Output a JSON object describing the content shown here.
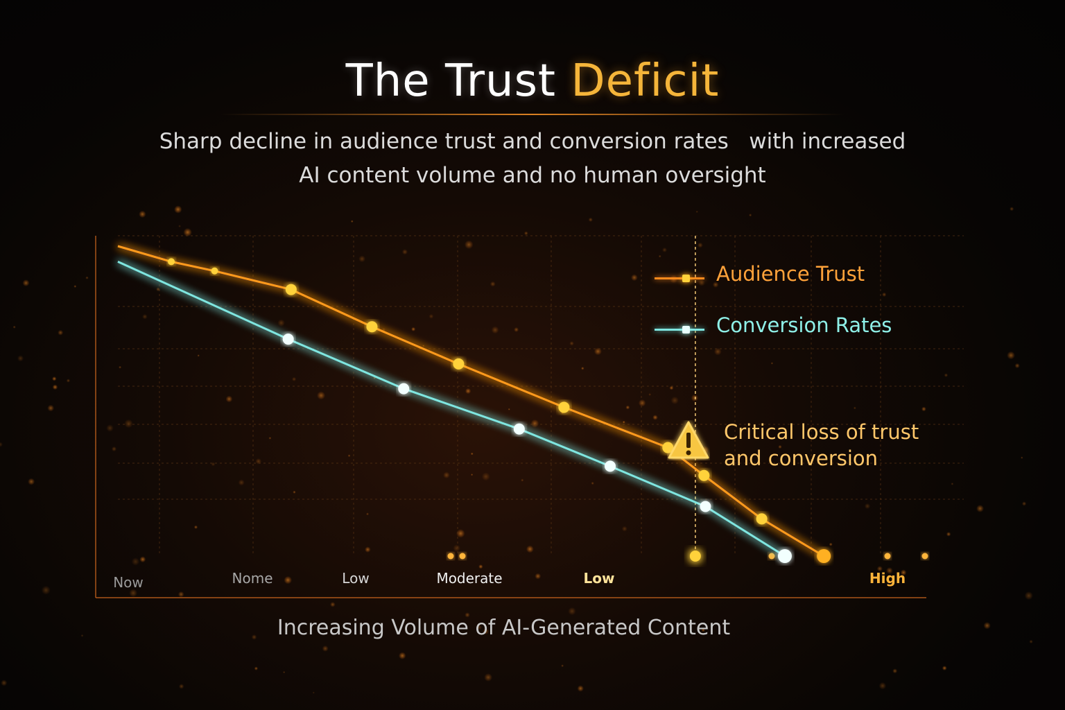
{
  "title": {
    "main": "The Trust",
    "accent": "Deficit"
  },
  "subtitle": {
    "line1": "Sharp decline in audience trust and conversion rates   with increased",
    "line2": "AI content volume and no human oversight"
  },
  "xaxis_label": "Increasing Volume of AI-Generated Content",
  "annotation": {
    "icon": "warning-triangle-icon",
    "line1": "Critical loss of trust",
    "line2": "and conversion"
  },
  "colors": {
    "trust": "#ff9a1f",
    "conversion": "#7fe6e0",
    "accent_title": "#f5b53a",
    "annotation": "#ffc76a"
  },
  "chart_data": {
    "type": "line",
    "title": "The Trust Deficit",
    "xlabel": "Increasing Volume of AI-Generated Content",
    "ylabel": "",
    "x_tick_labels": [
      "Now",
      "Nome",
      "Low",
      "Moderate",
      "Low",
      "High"
    ],
    "x_tick_positions": [
      0,
      1,
      2,
      3,
      4,
      5
    ],
    "xlim": [
      0,
      5.6
    ],
    "ylim": [
      0,
      100
    ],
    "grid": true,
    "legend_position": "top-right",
    "reference_line_x": 4,
    "series": [
      {
        "name": "Audience Trust",
        "color": "#ff9a1f",
        "x": [
          0,
          0.37,
          0.67,
          1.2,
          1.76,
          2.36,
          3.09,
          3.81,
          4.06,
          4.46,
          4.89
        ],
        "y": [
          100,
          95,
          92,
          86,
          74,
          62,
          48,
          35,
          26,
          12,
          0
        ]
      },
      {
        "name": "Conversion Rates",
        "color": "#7fe6e0",
        "x": [
          0,
          1.18,
          1.98,
          2.78,
          3.41,
          4.07,
          4.62
        ],
        "y": [
          95,
          70,
          54,
          41,
          29,
          16,
          0
        ]
      }
    ]
  }
}
